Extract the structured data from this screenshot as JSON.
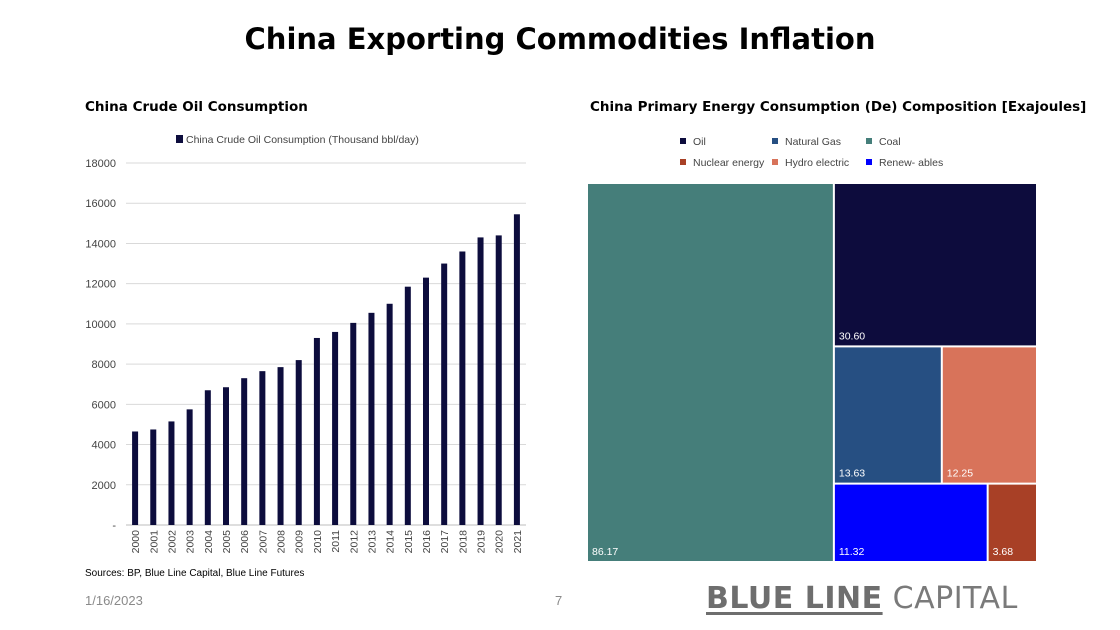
{
  "title": "China Exporting Commodities Inflation",
  "left_title": "China Crude Oil Consumption",
  "right_title": "China Primary Energy Consumption (De) Composition  [Exajoules]",
  "sources": "Sources: BP, Blue Line Capital, Blue Line Futures",
  "date": "1/16/2023",
  "page_number": "7",
  "brand": {
    "bold": "BLUE LINE",
    "light": "CAPITAL"
  },
  "chart_data": [
    {
      "type": "bar",
      "legend": "China Crude Oil Consumption (Thousand bbl/day)",
      "categories": [
        "2000",
        "2001",
        "2002",
        "2003",
        "2004",
        "2005",
        "2006",
        "2007",
        "2008",
        "2009",
        "2010",
        "2011",
        "2012",
        "2013",
        "2014",
        "2015",
        "2016",
        "2017",
        "2018",
        "2019",
        "2020",
        "2021"
      ],
      "series": [
        {
          "name": "China Crude Oil Consumption (Thousand bbl/day)",
          "values": [
            4650,
            4750,
            5150,
            5750,
            6700,
            6850,
            7300,
            7650,
            7850,
            8200,
            9300,
            9600,
            10050,
            10550,
            11000,
            11850,
            12300,
            13000,
            13600,
            14300,
            14400,
            15450
          ]
        }
      ],
      "yticks": [
        "-",
        "2000",
        "4000",
        "6000",
        "8000",
        "10000",
        "12000",
        "14000",
        "16000",
        "18000"
      ],
      "ylim": [
        0,
        18000
      ],
      "grid": true,
      "legend_position": "top",
      "color": "#0d0d3d"
    },
    {
      "type": "treemap",
      "legend": [
        {
          "name": "Oil",
          "color": "#0d0c3d"
        },
        {
          "name": "Natural Gas",
          "color": "#264f82"
        },
        {
          "name": "Coal",
          "color": "#457e7a"
        },
        {
          "name": "Nuclear energy",
          "color": "#a84026"
        },
        {
          "name": "Hydro electric",
          "color": "#d8735a"
        },
        {
          "name": "Renew- ables",
          "color": "#0000fe"
        }
      ],
      "items": [
        {
          "name": "Coal",
          "value": 86.17,
          "label": "86.17"
        },
        {
          "name": "Oil",
          "value": 30.6,
          "label": "30.60"
        },
        {
          "name": "Natural Gas",
          "value": 13.63,
          "label": "13.63"
        },
        {
          "name": "Hydro electric",
          "value": 12.25,
          "label": "12.25"
        },
        {
          "name": "Renew- ables",
          "value": 11.32,
          "label": "11.32"
        },
        {
          "name": "Nuclear energy",
          "value": 3.68,
          "label": "3.68"
        }
      ],
      "legend_position": "top"
    }
  ]
}
